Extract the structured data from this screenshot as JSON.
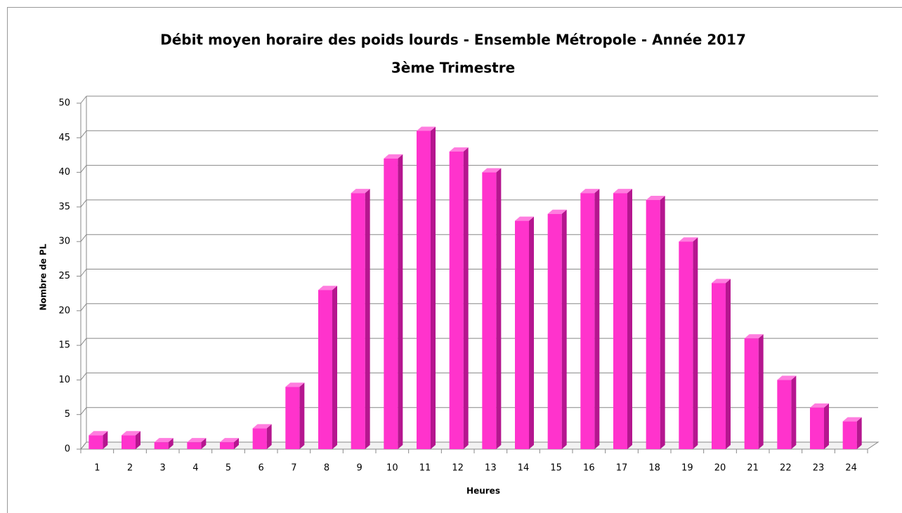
{
  "chart_data": {
    "type": "bar3d",
    "title": "Débit moyen horaire des poids lourds - Ensemble Métropole - Année 2017",
    "subtitle": "3ème Trimestre",
    "x_label": "Heures",
    "y_label": "Nombre de PL",
    "categories": [
      "1",
      "2",
      "3",
      "4",
      "5",
      "6",
      "7",
      "8",
      "9",
      "10",
      "11",
      "12",
      "13",
      "14",
      "15",
      "16",
      "17",
      "18",
      "19",
      "20",
      "21",
      "22",
      "23",
      "24"
    ],
    "values": [
      2,
      2,
      1,
      1,
      1,
      3,
      9,
      23,
      37,
      42,
      46,
      43,
      40,
      33,
      34,
      37,
      37,
      36,
      30,
      24,
      16,
      10,
      6,
      4
    ],
    "color": "#ff33cc",
    "ylim": [
      0,
      50
    ],
    "yticks": [
      0,
      5,
      10,
      15,
      20,
      25,
      30,
      35,
      40,
      45,
      50
    ],
    "grid": true
  }
}
